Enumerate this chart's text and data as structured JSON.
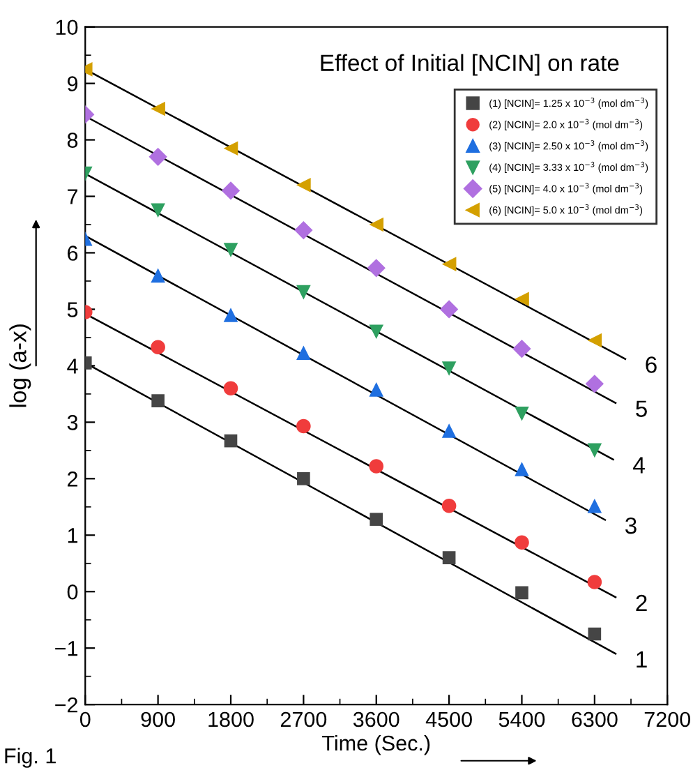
{
  "chart_data": {
    "type": "scatter",
    "title": "Effect of Initial [NCIN] on rate",
    "xlabel": "Time (Sec.)",
    "ylabel": "log (a-x)",
    "xlim": [
      0,
      7200
    ],
    "xticks": [
      0,
      900,
      1800,
      2700,
      3600,
      4500,
      5400,
      6300,
      7200
    ],
    "ylim": [
      -2,
      10
    ],
    "yticks": [
      -2,
      -1,
      0,
      1,
      2,
      3,
      4,
      5,
      6,
      7,
      8,
      9,
      10
    ],
    "grid": false,
    "legend": "top right",
    "x": [
      0,
      900,
      1800,
      2700,
      3600,
      4500,
      5400,
      6300
    ],
    "series": [
      {
        "name": "(1) [NCIN]= 1.25 x 10$^{−3}$ (mol dm$^{−3}$)",
        "color": "#454545",
        "marker": "square",
        "values": [
          4.05,
          3.38,
          2.67,
          2.0,
          1.28,
          0.6,
          -0.02,
          -0.75
        ]
      },
      {
        "name": "(2) [NCIN]= 2.0 x 10$^{−3}$ (mol dm$^{−3}$)",
        "color": "#f03c3c",
        "marker": "circle",
        "values": [
          4.95,
          4.33,
          3.6,
          2.93,
          2.22,
          1.52,
          0.87,
          0.17
        ]
      },
      {
        "name": "(3) [NCIN]= 2.50 x 10$^{−3}$ (mol dm$^{−3}$)",
        "color": "#1f6fe0",
        "marker": "triangle",
        "values": [
          6.25,
          5.6,
          4.9,
          4.23,
          3.58,
          2.85,
          2.17,
          1.52
        ]
      },
      {
        "name": "(4) [NCIN]= 3.33 x 10$^{−3}$ (mol dm$^{−3}$)",
        "color": "#2ea060",
        "marker": "triangle_down",
        "values": [
          7.4,
          6.75,
          6.05,
          5.3,
          4.6,
          3.95,
          3.15,
          2.5
        ]
      },
      {
        "name": "(5) [NCIN]= 4.0 x 10$^{−3}$ (mol dm$^{−3}$)",
        "color": "#b070e0",
        "marker": "diamond",
        "values": [
          8.45,
          7.7,
          7.1,
          6.4,
          5.73,
          5.0,
          4.3,
          3.68
        ]
      },
      {
        "name": "(6) [NCIN]= 5.0 x 10$^{−3}$ (mol dm$^{−3}$)",
        "color": "#d4a000",
        "marker": "triangle_left",
        "values": [
          9.25,
          8.55,
          7.85,
          7.2,
          6.5,
          5.8,
          5.18,
          4.45
        ]
      },
      {
        "type": "line",
        "name": "1",
        "color": "#000000",
        "x": [
          0,
          6560
        ],
        "values": [
          4.05,
          -1.1
        ]
      },
      {
        "type": "line",
        "name": "2",
        "color": "#000000",
        "x": [
          0,
          6560
        ],
        "values": [
          4.92,
          -0.1
        ]
      },
      {
        "type": "line",
        "name": "3",
        "color": "#000000",
        "x": [
          0,
          6430
        ],
        "values": [
          6.3,
          1.27
        ]
      },
      {
        "type": "line",
        "name": "4",
        "color": "#000000",
        "x": [
          0,
          6530
        ],
        "values": [
          7.4,
          2.34
        ]
      },
      {
        "type": "line",
        "name": "5",
        "color": "#000000",
        "x": [
          0,
          6560
        ],
        "values": [
          8.42,
          3.34
        ]
      },
      {
        "type": "line",
        "name": "6",
        "color": "#000000",
        "x": [
          0,
          6680
        ],
        "values": [
          9.25,
          4.12
        ]
      }
    ],
    "annotations": [
      "Fig. 1"
    ]
  }
}
